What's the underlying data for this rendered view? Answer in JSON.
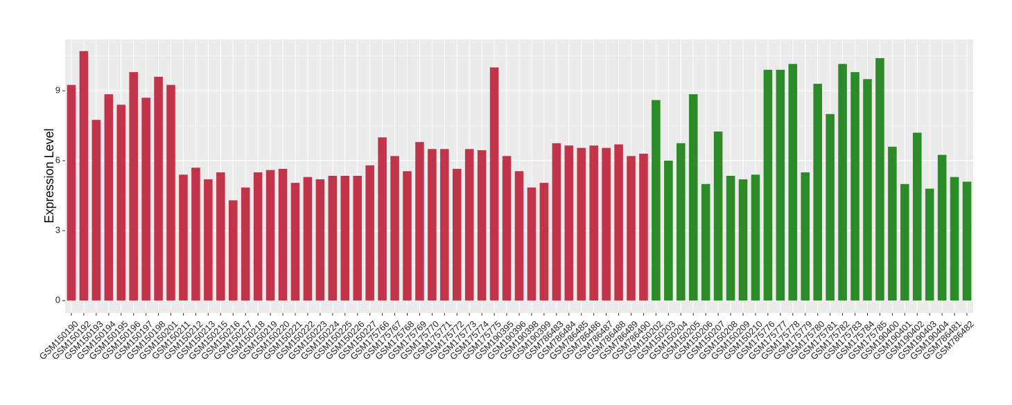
{
  "chart_data": {
    "type": "bar",
    "y_label": "Expression Level",
    "categories": [
      "GSM150190",
      "GSM150192",
      "GSM150193",
      "GSM150194",
      "GSM150195",
      "GSM150196",
      "GSM150197",
      "GSM150198",
      "GSM150201",
      "GSM150211",
      "GSM150212",
      "GSM150213",
      "GSM150215",
      "GSM150216",
      "GSM150217",
      "GSM150218",
      "GSM150219",
      "GSM150220",
      "GSM150221",
      "GSM150222",
      "GSM150223",
      "GSM150224",
      "GSM150225",
      "GSM150226",
      "GSM150227",
      "GSM175766",
      "GSM175767",
      "GSM175768",
      "GSM175769",
      "GSM175770",
      "GSM175771",
      "GSM175772",
      "GSM175773",
      "GSM175774",
      "GSM175775",
      "GSM190395",
      "GSM190396",
      "GSM190398",
      "GSM190399",
      "GSM786483",
      "GSM786484",
      "GSM786485",
      "GSM786486",
      "GSM786487",
      "GSM786488",
      "GSM786489",
      "GSM786490",
      "GSM150202",
      "GSM150203",
      "GSM150204",
      "GSM150205",
      "GSM150206",
      "GSM150207",
      "GSM150208",
      "GSM150209",
      "GSM150210",
      "GSM175776",
      "GSM175777",
      "GSM175778",
      "GSM175779",
      "GSM175780",
      "GSM175781",
      "GSM175782",
      "GSM175783",
      "GSM175784",
      "GSM175785",
      "GSM190400",
      "GSM190401",
      "GSM190402",
      "GSM190403",
      "GSM190404",
      "GSM786481",
      "GSM786482"
    ],
    "values": [
      9.25,
      10.7,
      7.75,
      8.85,
      8.4,
      9.8,
      8.7,
      9.6,
      9.25,
      5.4,
      5.7,
      5.2,
      5.5,
      4.3,
      4.85,
      5.5,
      5.6,
      5.65,
      5.05,
      5.3,
      5.2,
      5.35,
      5.35,
      5.35,
      5.8,
      7.0,
      6.2,
      5.55,
      6.8,
      6.5,
      6.5,
      5.65,
      6.5,
      6.45,
      10.0,
      6.2,
      5.55,
      4.85,
      5.05,
      6.75,
      6.65,
      6.55,
      6.65,
      6.55,
      6.7,
      6.2,
      6.3,
      8.6,
      6.0,
      6.75,
      8.85,
      5.0,
      7.25,
      5.35,
      5.2,
      5.4,
      9.9,
      9.9,
      10.15,
      5.5,
      9.3,
      8.0,
      10.15,
      9.8,
      9.5,
      10.4,
      6.6,
      5.0,
      7.2,
      4.8,
      6.25,
      5.3,
      5.1
    ],
    "colors": [
      "#c1344a",
      "#c1344a",
      "#c1344a",
      "#c1344a",
      "#c1344a",
      "#c1344a",
      "#c1344a",
      "#c1344a",
      "#c1344a",
      "#c1344a",
      "#c1344a",
      "#c1344a",
      "#c1344a",
      "#c1344a",
      "#c1344a",
      "#c1344a",
      "#c1344a",
      "#c1344a",
      "#c1344a",
      "#c1344a",
      "#c1344a",
      "#c1344a",
      "#c1344a",
      "#c1344a",
      "#c1344a",
      "#c1344a",
      "#c1344a",
      "#c1344a",
      "#c1344a",
      "#c1344a",
      "#c1344a",
      "#c1344a",
      "#c1344a",
      "#c1344a",
      "#c1344a",
      "#c1344a",
      "#c1344a",
      "#c1344a",
      "#c1344a",
      "#c1344a",
      "#c1344a",
      "#c1344a",
      "#c1344a",
      "#c1344a",
      "#c1344a",
      "#c1344a",
      "#c1344a",
      "#2a8b27",
      "#2a8b27",
      "#2a8b27",
      "#2a8b27",
      "#2a8b27",
      "#2a8b27",
      "#2a8b27",
      "#2a8b27",
      "#2a8b27",
      "#2a8b27",
      "#2a8b27",
      "#2a8b27",
      "#2a8b27",
      "#2a8b27",
      "#2a8b27",
      "#2a8b27",
      "#2a8b27",
      "#2a8b27",
      "#2a8b27",
      "#2a8b27",
      "#2a8b27",
      "#2a8b27",
      "#2a8b27",
      "#2a8b27",
      "#2a8b27",
      "#2a8b27"
    ],
    "ylim": [
      -0.53,
      11.2
    ],
    "yticks": [
      0,
      3,
      6,
      9
    ],
    "grid": true
  }
}
